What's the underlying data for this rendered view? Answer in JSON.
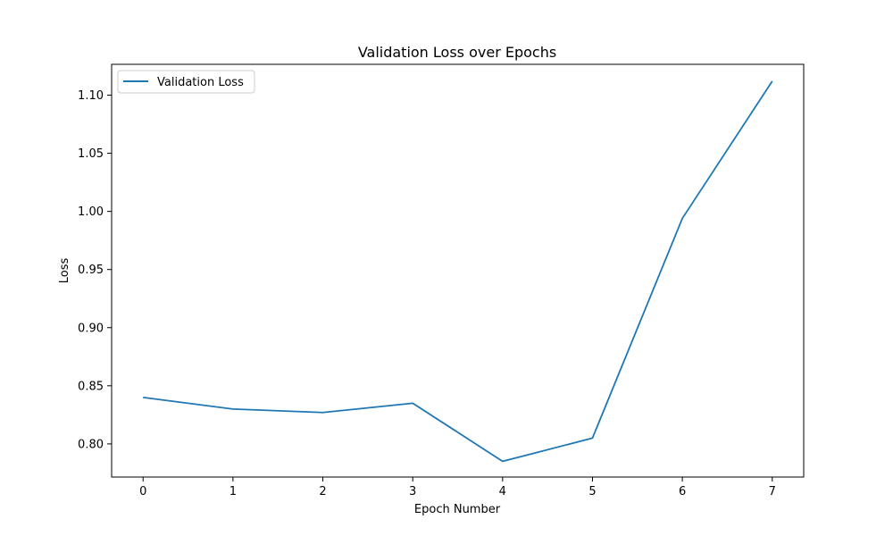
{
  "chart_data": {
    "type": "line",
    "title": "Validation Loss over Epochs",
    "xlabel": "Epoch Number",
    "ylabel": "Loss",
    "x": [
      0,
      1,
      2,
      3,
      4,
      5,
      6,
      7
    ],
    "xticks": [
      "0",
      "1",
      "2",
      "3",
      "4",
      "5",
      "6",
      "7"
    ],
    "yticks": [
      0.8,
      0.85,
      0.9,
      0.95,
      1.0,
      1.05,
      1.1
    ],
    "ytick_labels": [
      "0.80",
      "0.85",
      "0.90",
      "0.95",
      "1.00",
      "1.05",
      "1.10"
    ],
    "xlim": [
      -0.35,
      7.35
    ],
    "ylim": [
      0.7715,
      1.1265
    ],
    "grid": false,
    "legend_position": "top-left",
    "series": [
      {
        "name": "Validation Loss",
        "color": "#1f77b4",
        "values": [
          0.84,
          0.83,
          0.827,
          0.835,
          0.785,
          0.805,
          0.994,
          1.112
        ]
      }
    ]
  }
}
